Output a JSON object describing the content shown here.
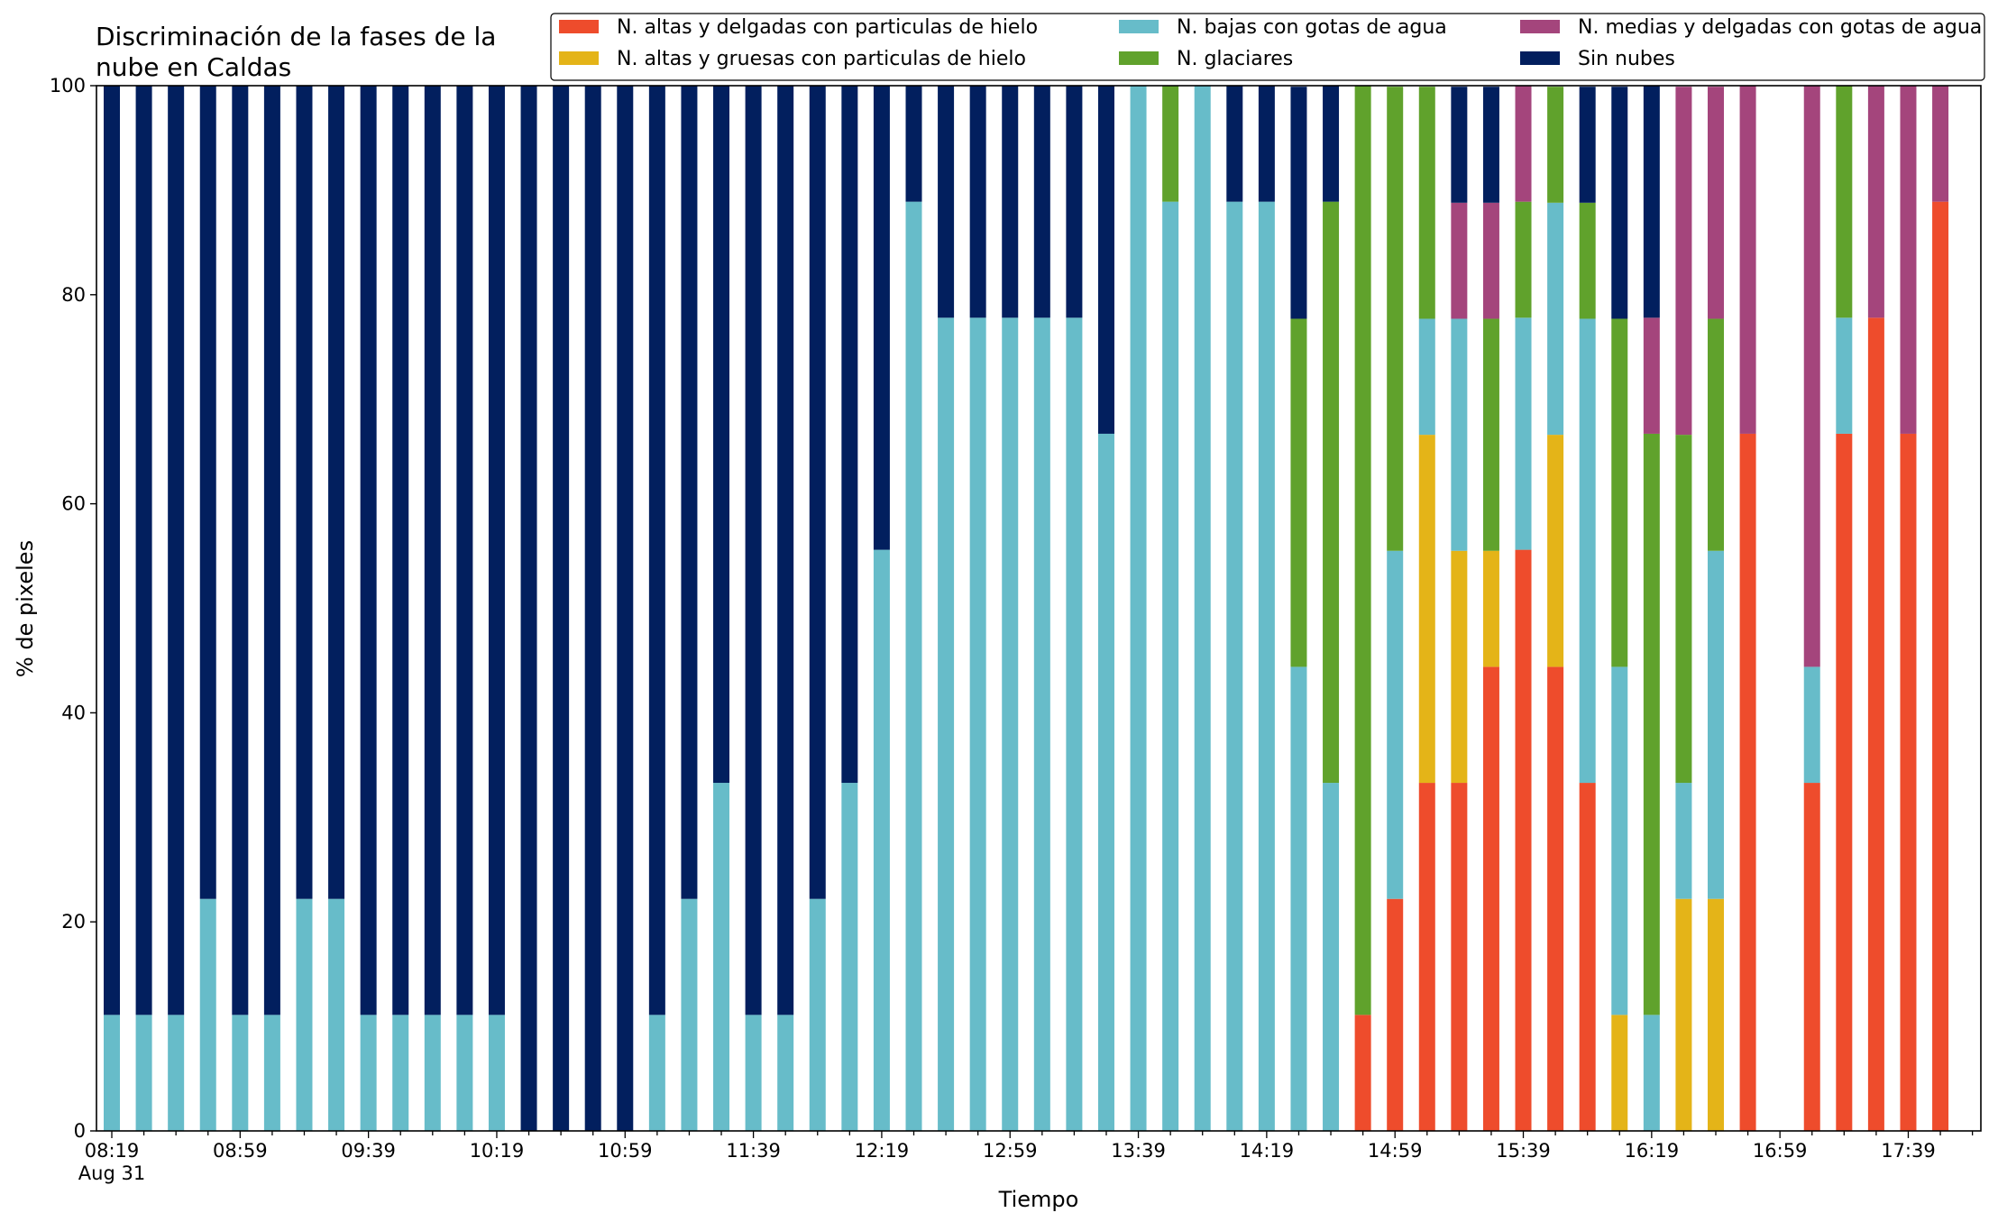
{
  "chart_data": {
    "type": "bar",
    "stacked": true,
    "title_lines": [
      "Discriminación de la fases de la",
      "nube en Caldas"
    ],
    "xlabel": "Tiempo",
    "ylabel": "% de pixeles",
    "ylim": [
      0,
      100
    ],
    "yticks": [
      0,
      20,
      40,
      60,
      80,
      100
    ],
    "x_tick_labels": [
      "08:19",
      "08:59",
      "09:39",
      "10:19",
      "10:59",
      "11:39",
      "12:19",
      "12:59",
      "13:39",
      "14:19",
      "14:59",
      "15:39",
      "16:19",
      "16:59",
      "17:39"
    ],
    "x_date_label": "Aug 31",
    "grid": false,
    "legend_position": "top",
    "colors": {
      "hielo_delgadas": "#ee4c2c",
      "hielo_gruesas": "#e4b418",
      "bajas_agua": "#67bcc9",
      "glaciares": "#60a22c",
      "medias_agua": "#a4457c",
      "sin_nubes": "#021f5e"
    },
    "series": [
      {
        "key": "hielo_delgadas",
        "name": "N. altas y delgadas con particulas de hielo"
      },
      {
        "key": "hielo_gruesas",
        "name": "N. altas y gruesas con particulas de hielo"
      },
      {
        "key": "bajas_agua",
        "name": "N. bajas con gotas de agua"
      },
      {
        "key": "glaciares",
        "name": "N. glaciares"
      },
      {
        "key": "medias_agua",
        "name": "N. medias y delgadas con gotas de agua"
      },
      {
        "key": "sin_nubes",
        "name": "Sin nubes"
      }
    ],
    "stack_order": [
      "hielo_delgadas",
      "hielo_gruesas",
      "bajas_agua",
      "glaciares",
      "medias_agua",
      "sin_nubes"
    ],
    "bars": [
      {
        "time": "08:19",
        "values": [
          0,
          0,
          11.1,
          0,
          0,
          88.9
        ]
      },
      {
        "time": "08:29",
        "values": [
          0,
          0,
          11.1,
          0,
          0,
          88.9
        ]
      },
      {
        "time": "08:39",
        "values": [
          0,
          0,
          11.1,
          0,
          0,
          88.9
        ]
      },
      {
        "time": "08:49",
        "values": [
          0,
          0,
          22.2,
          0,
          0,
          77.8
        ]
      },
      {
        "time": "08:59",
        "values": [
          0,
          0,
          11.1,
          0,
          0,
          88.9
        ]
      },
      {
        "time": "09:09",
        "values": [
          0,
          0,
          11.1,
          0,
          0,
          88.9
        ]
      },
      {
        "time": "09:19",
        "values": [
          0,
          0,
          22.2,
          0,
          0,
          77.8
        ]
      },
      {
        "time": "09:29",
        "values": [
          0,
          0,
          22.2,
          0,
          0,
          77.8
        ]
      },
      {
        "time": "09:39",
        "values": [
          0,
          0,
          11.1,
          0,
          0,
          88.9
        ]
      },
      {
        "time": "09:49",
        "values": [
          0,
          0,
          11.1,
          0,
          0,
          88.9
        ]
      },
      {
        "time": "09:59",
        "values": [
          0,
          0,
          11.1,
          0,
          0,
          88.9
        ]
      },
      {
        "time": "10:09",
        "values": [
          0,
          0,
          11.1,
          0,
          0,
          88.9
        ]
      },
      {
        "time": "10:19",
        "values": [
          0,
          0,
          11.1,
          0,
          0,
          88.9
        ]
      },
      {
        "time": "10:29",
        "values": [
          0,
          0,
          0,
          0,
          0,
          100
        ]
      },
      {
        "time": "10:39",
        "values": [
          0,
          0,
          0,
          0,
          0,
          100
        ]
      },
      {
        "time": "10:49",
        "values": [
          0,
          0,
          0,
          0,
          0,
          100
        ]
      },
      {
        "time": "10:59",
        "values": [
          0,
          0,
          0,
          0,
          0,
          100
        ]
      },
      {
        "time": "11:09",
        "values": [
          0,
          0,
          11.1,
          0,
          0,
          88.9
        ]
      },
      {
        "time": "11:19",
        "values": [
          0,
          0,
          22.2,
          0,
          0,
          77.8
        ]
      },
      {
        "time": "11:29",
        "values": [
          0,
          0,
          33.3,
          0,
          0,
          66.7
        ]
      },
      {
        "time": "11:39",
        "values": [
          0,
          0,
          11.1,
          0,
          0,
          88.9
        ]
      },
      {
        "time": "11:49",
        "values": [
          0,
          0,
          11.1,
          0,
          0,
          88.9
        ]
      },
      {
        "time": "11:59",
        "values": [
          0,
          0,
          22.2,
          0,
          0,
          77.8
        ]
      },
      {
        "time": "12:09",
        "values": [
          0,
          0,
          33.3,
          0,
          0,
          66.7
        ]
      },
      {
        "time": "12:19",
        "values": [
          0,
          0,
          55.6,
          0,
          0,
          44.4
        ]
      },
      {
        "time": "12:29",
        "values": [
          0,
          0,
          88.9,
          0,
          0,
          11.1
        ]
      },
      {
        "time": "12:39",
        "values": [
          0,
          0,
          77.8,
          0,
          0,
          22.2
        ]
      },
      {
        "time": "12:49",
        "values": [
          0,
          0,
          77.8,
          0,
          0,
          22.2
        ]
      },
      {
        "time": "12:59",
        "values": [
          0,
          0,
          77.8,
          0,
          0,
          22.2
        ]
      },
      {
        "time": "13:09",
        "values": [
          0,
          0,
          77.8,
          0,
          0,
          22.2
        ]
      },
      {
        "time": "13:19",
        "values": [
          0,
          0,
          77.8,
          0,
          0,
          22.2
        ]
      },
      {
        "time": "13:29",
        "values": [
          0,
          0,
          66.7,
          0,
          0,
          33.3
        ]
      },
      {
        "time": "13:39",
        "values": [
          0,
          0,
          100,
          0,
          0,
          0
        ]
      },
      {
        "time": "13:49",
        "values": [
          0,
          0,
          88.9,
          11.1,
          0,
          0
        ]
      },
      {
        "time": "13:59",
        "values": [
          0,
          0,
          100,
          0,
          0,
          0
        ]
      },
      {
        "time": "14:09",
        "values": [
          0,
          0,
          88.9,
          0,
          0,
          11.1
        ]
      },
      {
        "time": "14:19",
        "values": [
          0,
          0,
          88.9,
          0,
          0,
          11.1
        ]
      },
      {
        "time": "14:29",
        "values": [
          0,
          0,
          44.4,
          33.3,
          0,
          22.2
        ]
      },
      {
        "time": "14:39",
        "values": [
          0,
          0,
          33.3,
          55.6,
          0,
          11.1
        ]
      },
      {
        "time": "14:49",
        "values": [
          11.1,
          0,
          0,
          88.9,
          0,
          0
        ]
      },
      {
        "time": "14:59",
        "values": [
          22.2,
          0,
          33.3,
          44.4,
          0,
          0
        ]
      },
      {
        "time": "15:09",
        "values": [
          33.3,
          33.3,
          11.1,
          22.2,
          0,
          0
        ]
      },
      {
        "time": "15:19",
        "values": [
          33.3,
          22.2,
          22.2,
          0,
          11.1,
          11.1
        ]
      },
      {
        "time": "15:29",
        "values": [
          44.4,
          11.1,
          0,
          22.2,
          11.1,
          11.1
        ]
      },
      {
        "time": "15:39",
        "values": [
          55.6,
          0,
          22.2,
          11.1,
          11.1,
          0
        ]
      },
      {
        "time": "15:49",
        "values": [
          44.4,
          22.2,
          22.2,
          11.1,
          0,
          0
        ]
      },
      {
        "time": "15:59",
        "values": [
          33.3,
          0,
          44.4,
          11.1,
          0,
          11.1
        ]
      },
      {
        "time": "16:09",
        "values": [
          0,
          11.1,
          33.3,
          33.3,
          0,
          22.2
        ]
      },
      {
        "time": "16:19",
        "values": [
          0,
          0,
          11.1,
          55.6,
          11.1,
          22.2
        ]
      },
      {
        "time": "16:29",
        "values": [
          0,
          22.2,
          11.1,
          33.3,
          33.3,
          0
        ]
      },
      {
        "time": "16:39",
        "values": [
          0,
          22.2,
          33.3,
          22.2,
          22.2,
          0
        ]
      },
      {
        "time": "16:49",
        "values": [
          66.7,
          0,
          0,
          0,
          33.3,
          0
        ]
      },
      {
        "time": "16:59",
        "values": [
          0,
          0,
          0,
          0,
          0,
          0
        ]
      },
      {
        "time": "17:09",
        "values": [
          33.3,
          0,
          11.1,
          0,
          55.6,
          0
        ]
      },
      {
        "time": "17:19",
        "values": [
          66.7,
          0,
          11.1,
          22.2,
          0,
          0
        ]
      },
      {
        "time": "17:29",
        "values": [
          77.8,
          0,
          0,
          0,
          22.2,
          0
        ]
      },
      {
        "time": "17:39",
        "values": [
          66.7,
          0,
          0,
          0,
          33.3,
          0
        ]
      },
      {
        "time": "17:49",
        "values": [
          88.9,
          0,
          0,
          0,
          11.1,
          0
        ]
      }
    ]
  }
}
